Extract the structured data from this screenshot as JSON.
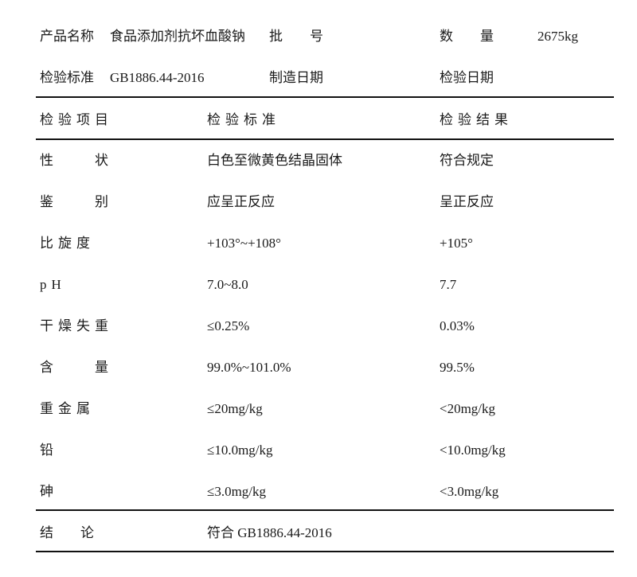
{
  "header": {
    "product_name_label": "产品名称",
    "product_name": "食品添加剂抗坏血酸钠",
    "batch_label": "批　　号",
    "batch_value": "",
    "quantity_label": "数　　量",
    "quantity_value": "2675kg",
    "standard_label": "检验标准",
    "standard_value": "GB1886.44-2016",
    "manufacture_date_label": "制造日期",
    "inspection_date_label": "检验日期"
  },
  "table": {
    "columns": [
      "检验项目",
      "检验标准",
      "检验结果"
    ],
    "rows": [
      {
        "item": "性　　状",
        "standard": "白色至微黄色结晶固体",
        "result": "符合规定"
      },
      {
        "item": "鉴　　别",
        "standard": "应呈正反应",
        "result": "呈正反应"
      },
      {
        "item": "比旋度",
        "standard": "+103°~+108°",
        "result": "+105°"
      },
      {
        "item": "pH",
        "standard": "7.0~8.0",
        "result": "7.7"
      },
      {
        "item": "干燥失重",
        "standard": "≤0.25%",
        "result": "0.03%"
      },
      {
        "item": "含　　量",
        "standard": "99.0%~101.0%",
        "result": "99.5%"
      },
      {
        "item": "重金属",
        "standard": "≤20mg/kg",
        "result": "<20mg/kg"
      },
      {
        "item": "铅",
        "standard": "≤10.0mg/kg",
        "result": "<10.0mg/kg"
      },
      {
        "item": "砷",
        "standard": "≤3.0mg/kg",
        "result": "<3.0mg/kg"
      }
    ],
    "conclusion_label": "结　　论",
    "conclusion_value": "符合 GB1886.44-2016"
  }
}
